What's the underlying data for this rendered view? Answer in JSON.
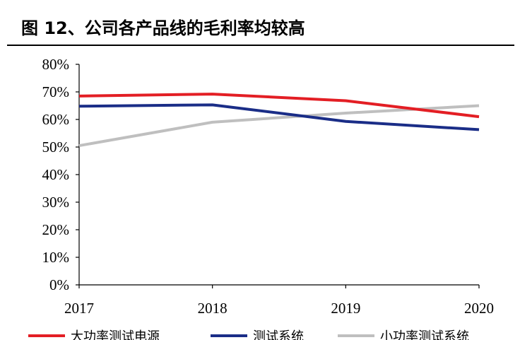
{
  "header": {
    "title": "图 12、公司各产品线的毛利率均较高"
  },
  "chart_data": {
    "type": "line",
    "title": "图 12、公司各产品线的毛利率均较高",
    "xlabel": "",
    "ylabel": "",
    "x": [
      "2017",
      "2018",
      "2019",
      "2020"
    ],
    "ylim": [
      0,
      80
    ],
    "yticks": [
      "0%",
      "10%",
      "20%",
      "30%",
      "40%",
      "50%",
      "60%",
      "70%",
      "80%"
    ],
    "grid": false,
    "legend_position": "bottom",
    "series": [
      {
        "name": "大功率测试电源",
        "color": "#e31e24",
        "values": [
          68.5,
          69.2,
          66.8,
          61.0
        ]
      },
      {
        "name": "测试系统",
        "color": "#1a2d87",
        "values": [
          64.8,
          65.3,
          59.3,
          56.3
        ]
      },
      {
        "name": "小功率测试系统",
        "color": "#bfbfbf",
        "values": [
          50.5,
          59.0,
          62.3,
          65.0
        ]
      }
    ]
  }
}
